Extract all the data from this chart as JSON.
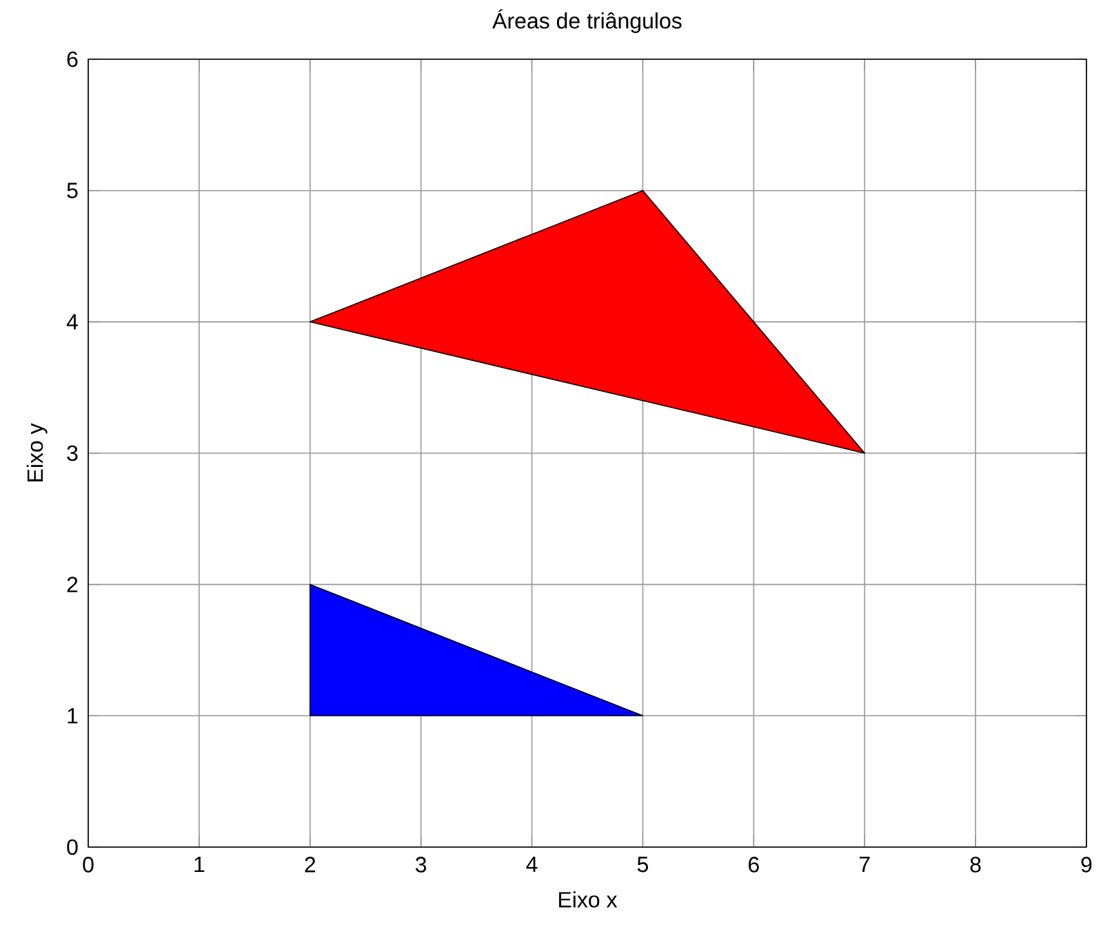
{
  "chart_data": {
    "type": "area",
    "title": "Áreas de triângulos",
    "xlabel": "Eixo x",
    "ylabel": "Eixo y",
    "xlim": [
      0,
      9
    ],
    "ylim": [
      0,
      6
    ],
    "xticks": [
      0,
      1,
      2,
      3,
      4,
      5,
      6,
      7,
      8,
      9
    ],
    "yticks": [
      0,
      1,
      2,
      3,
      4,
      5,
      6
    ],
    "grid": true,
    "series": [
      {
        "color": "#ff0000",
        "x": [
          2,
          5,
          7
        ],
        "values": [
          4,
          5,
          3
        ]
      },
      {
        "color": "#0000ff",
        "x": [
          2,
          2,
          5
        ],
        "values": [
          1,
          2,
          1
        ]
      }
    ]
  }
}
